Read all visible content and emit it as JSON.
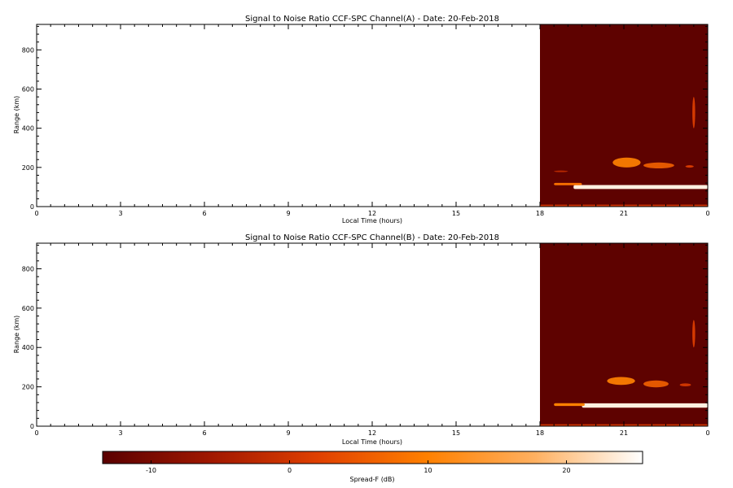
{
  "chart_data": [
    {
      "type": "heatmap",
      "title": "Signal to Noise Ratio CCF-SPC Channel(A) - Date: 20-Feb-2018",
      "xlabel": "Local Time (hours)",
      "ylabel": "Range (km)",
      "x_ticks": [
        "0",
        "3",
        "6",
        "9",
        "12",
        "15",
        "18",
        "21",
        "0"
      ],
      "y_ticks": [
        "0",
        "200",
        "400",
        "600",
        "800"
      ],
      "xlim": [
        0,
        24
      ],
      "ylim": [
        0,
        930
      ],
      "data_x_range": [
        18,
        24
      ],
      "background_level_db": -13,
      "features": [
        {
          "kind": "layer",
          "x": [
            19.2,
            24.0
          ],
          "y": 100,
          "thickness_km": 20,
          "level_db": 24
        },
        {
          "kind": "layer",
          "x": [
            18.5,
            19.5
          ],
          "y": 115,
          "thickness_km": 12,
          "level_db": 8
        },
        {
          "kind": "layer",
          "x": [
            18.0,
            24.0
          ],
          "y": 5,
          "thickness_km": 10,
          "level_db": 0
        },
        {
          "kind": "patch",
          "x": [
            20.6,
            21.6
          ],
          "y": 225,
          "thickness_km": 50,
          "level_db": 10
        },
        {
          "kind": "patch",
          "x": [
            21.7,
            22.8
          ],
          "y": 210,
          "thickness_km": 30,
          "level_db": 6
        },
        {
          "kind": "patch",
          "x": [
            23.2,
            23.5
          ],
          "y": 205,
          "thickness_km": 12,
          "level_db": 2
        },
        {
          "kind": "patch",
          "x": [
            18.5,
            19.0
          ],
          "y": 180,
          "thickness_km": 8,
          "level_db": -2
        },
        {
          "kind": "streak",
          "x": [
            23.45,
            23.55
          ],
          "y": 480,
          "thickness_km": 160,
          "level_db": 2
        }
      ]
    },
    {
      "type": "heatmap",
      "title": "Signal to Noise Ratio CCF-SPC Channel(B) - Date: 20-Feb-2018",
      "xlabel": "Local Time (hours)",
      "ylabel": "Range (km)",
      "x_ticks": [
        "0",
        "3",
        "6",
        "9",
        "12",
        "15",
        "18",
        "21",
        "0"
      ],
      "y_ticks": [
        "0",
        "200",
        "400",
        "600",
        "800"
      ],
      "xlim": [
        0,
        24
      ],
      "ylim": [
        0,
        930
      ],
      "data_x_range": [
        18,
        24
      ],
      "background_level_db": -13,
      "features": [
        {
          "kind": "layer",
          "x": [
            19.5,
            24.0
          ],
          "y": 105,
          "thickness_km": 22,
          "level_db": 24
        },
        {
          "kind": "layer",
          "x": [
            18.5,
            19.6
          ],
          "y": 110,
          "thickness_km": 14,
          "level_db": 10
        },
        {
          "kind": "layer",
          "x": [
            18.0,
            24.0
          ],
          "y": 5,
          "thickness_km": 10,
          "level_db": 0
        },
        {
          "kind": "patch",
          "x": [
            20.4,
            21.4
          ],
          "y": 230,
          "thickness_km": 40,
          "level_db": 10
        },
        {
          "kind": "patch",
          "x": [
            21.7,
            22.6
          ],
          "y": 215,
          "thickness_km": 35,
          "level_db": 6
        },
        {
          "kind": "patch",
          "x": [
            23.0,
            23.4
          ],
          "y": 210,
          "thickness_km": 15,
          "level_db": 1
        },
        {
          "kind": "streak",
          "x": [
            23.45,
            23.55
          ],
          "y": 470,
          "thickness_km": 140,
          "level_db": 2
        }
      ]
    }
  ],
  "colorbar": {
    "label": "Spread-F (dB)",
    "ticks": [
      "-10",
      "0",
      "10",
      "20"
    ],
    "tick_values": [
      -10,
      0,
      10,
      20
    ],
    "range": [
      -13.5,
      25.5
    ],
    "colors": [
      "#5a0000",
      "#a01800",
      "#e04000",
      "#ff8000",
      "#ffb060",
      "#ffffff"
    ]
  }
}
